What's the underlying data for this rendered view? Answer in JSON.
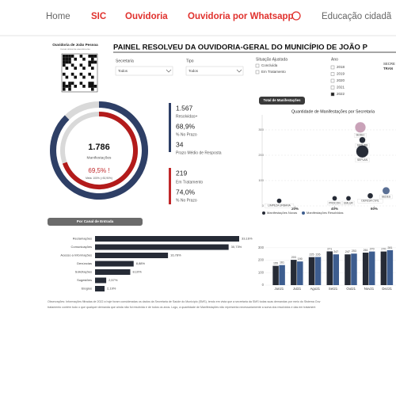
{
  "nav": {
    "items": [
      "Home",
      "SIC",
      "Ouvidoria",
      "Ouvidoria por Whatsapp",
      "Educação cidadã"
    ]
  },
  "logo": {
    "title": "Ouvidoria de João Pessoa",
    "subtitle": "Canal oficial de atendimento"
  },
  "title": "PAINEL RESOLVEU DA OUVIDORIA-GERAL DO MUNICÍPIO DE JOÃO P",
  "filters": {
    "secretaria": {
      "label": "Secretaria",
      "value": "Todos"
    },
    "tipo": {
      "label": "Tipo",
      "value": "Todos"
    },
    "situacao": {
      "label": "Situação Ajustada",
      "options": [
        "Concluída",
        "Em Tratamento"
      ]
    },
    "ano": {
      "label": "Ano",
      "options": [
        "2018",
        "2019",
        "2020",
        "2021",
        "2022"
      ],
      "selected": "2022"
    },
    "side": [
      "SECRE",
      "TRAN"
    ]
  },
  "kpi": {
    "total": {
      "value": 1786,
      "label": "1.786"
    },
    "total_label": "Manifestações",
    "pct": {
      "value": 69.5,
      "label": "69,5% !"
    },
    "meta": "Meta: 100% (>30,90%)",
    "resolved": {
      "value": 1567,
      "label": "1.567"
    },
    "resolved_label": "Resolvidas+",
    "resolved_pct": {
      "value": 68.9,
      "label": "68,9%"
    },
    "resolved_pct_label": "% No Prazo",
    "avg": 34,
    "avg_label": "Prazo Médio de Resposta",
    "open": 219,
    "open_label": "Em Tratamento",
    "open_pct": {
      "value": 74.0,
      "label": "74,0%"
    },
    "open_pct_label": "% No Prazo"
  },
  "channel": {
    "type": "bar",
    "title": "Por Canal de Entrada",
    "categories": [
      "Reclamações",
      "Comunicações",
      "Acesso a Informações",
      "Denúncias",
      "Solicitações",
      "Sugestões",
      "Elogios"
    ],
    "values": [
      33.16,
      30.73,
      16.78,
      8.88,
      8.1,
      2.57,
      2.19
    ],
    "value_labels": [
      "33,16%",
      "30,73%",
      "16,78%",
      "8,88%",
      "8,10%",
      "2,57%",
      "2,19%"
    ],
    "color": "#262b36"
  },
  "scatter": {
    "type": "scatter",
    "header": "Total de Manifestações",
    "title": "Quantidade de Manifestações por Secretaria",
    "labels": [
      "SEDEC",
      "SEDURB",
      "SEPLAN",
      "LIMPEZA URBANA",
      "PROCON",
      "EMLUR",
      "DEFESA CIVIL",
      "SEDES"
    ],
    "x": [
      53,
      54,
      54,
      12,
      40,
      47,
      58,
      66
    ],
    "values": [
      310,
      260,
      215,
      20,
      30,
      30,
      40,
      60
    ],
    "sizes": [
      30,
      10,
      40,
      6,
      6,
      6,
      8,
      14
    ],
    "colors": [
      "#c9a2b8",
      "#262b36",
      "#262b36",
      "#262b36",
      "#262b36",
      "#262b36",
      "#262b36",
      "#5a6f94"
    ],
    "xlim": [
      5,
      75
    ],
    "ylim": [
      0,
      350
    ],
    "xticks": [
      {
        "value": 20,
        "label": "20%"
      },
      {
        "value": 40,
        "label": "40%"
      },
      {
        "value": 60,
        "label": "60%"
      }
    ],
    "yticks": [
      0,
      100,
      200,
      300
    ]
  },
  "monthly": {
    "type": "bar",
    "categories": [
      "Jun21",
      "Jul21",
      "Ago21",
      "Set21",
      "Out21",
      "Nov21",
      "Dez21"
    ],
    "series": [
      {
        "name": "Manifestações Novas",
        "color": "#262b36",
        "values": [
          155,
          203,
          225,
          271,
          247,
          261,
          270
        ]
      },
      {
        "name": "Manifestações Resolvidas",
        "color": "#3d5d8f",
        "values": [
          161,
          190,
          226,
          247,
          253,
          270,
          281
        ]
      }
    ],
    "ylim": [
      0,
      350
    ],
    "yticks": [
      0,
      100,
      200,
      300
    ]
  },
  "footer": {
    "lines": [
      "Observações: Informações filtradas de 2022 a hoje foram consideradas os dados da Secretaria de Saúde do Município (SMS), tendo em vista que a secretaria da SMS todas suas demandas por meio do Sistema Ouv",
      "tratamento contém tudo o que qualquer demanda que ainda não foi resolvida e de todos os anos. Logo, a quantidade de Manifestações não representa necessariamente a soma dos resolvidos e das em tratament"
    ]
  }
}
